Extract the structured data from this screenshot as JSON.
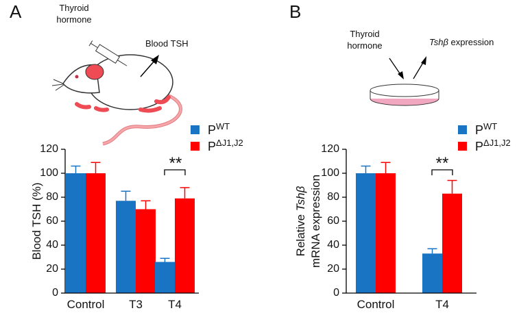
{
  "chart_data": [
    {
      "type": "bar",
      "panel": "A",
      "annotations": [
        {
          "lines": [
            "Thyroid",
            "hormone"
          ]
        },
        {
          "lines": [
            "Blood TSH"
          ]
        },
        {
          "lines": [
            "**"
          ]
        }
      ],
      "ylabel": [
        [
          "Blood TSH (%)"
        ]
      ],
      "categories": [
        "Control",
        "T3",
        "T4"
      ],
      "series": [
        {
          "name": "P",
          "name_sup": "WT",
          "color": "#1a74c4",
          "values": [
            100,
            77,
            26
          ],
          "errors": [
            6,
            8,
            3
          ]
        },
        {
          "name": "P",
          "name_sup": "ΔJ1,J2",
          "color": "#ff0000",
          "values": [
            100,
            70,
            79
          ],
          "errors": [
            9,
            7,
            9
          ]
        }
      ],
      "ylim": [
        0,
        120
      ],
      "yticks": [
        0,
        20,
        40,
        60,
        80,
        100,
        120
      ]
    },
    {
      "type": "bar",
      "panel": "B",
      "annotations": [
        {
          "lines": [
            "Thyroid",
            "hormone"
          ]
        },
        {
          "lines": [
            [
              {
                "text": "Tshβ",
                "italic": true
              },
              {
                "text": " expression",
                "italic": false
              }
            ]
          ]
        },
        {
          "lines": [
            "**"
          ]
        }
      ],
      "ylabel": [
        [
          {
            "text": "Relative ",
            "italic": false
          },
          {
            "text": "Tshβ",
            "italic": true
          }
        ],
        [
          "mRNA expression"
        ]
      ],
      "categories": [
        "Control",
        "T4"
      ],
      "series": [
        {
          "name": "P",
          "name_sup": "WT",
          "color": "#1a74c4",
          "values": [
            100,
            33
          ],
          "errors": [
            6,
            4
          ]
        },
        {
          "name": "P",
          "name_sup": "ΔJ1,J2",
          "color": "#ff0000",
          "values": [
            100,
            83
          ],
          "errors": [
            9,
            11
          ]
        }
      ],
      "ylim": [
        0,
        120
      ],
      "yticks": [
        0,
        20,
        40,
        60,
        80,
        100,
        120
      ]
    }
  ]
}
